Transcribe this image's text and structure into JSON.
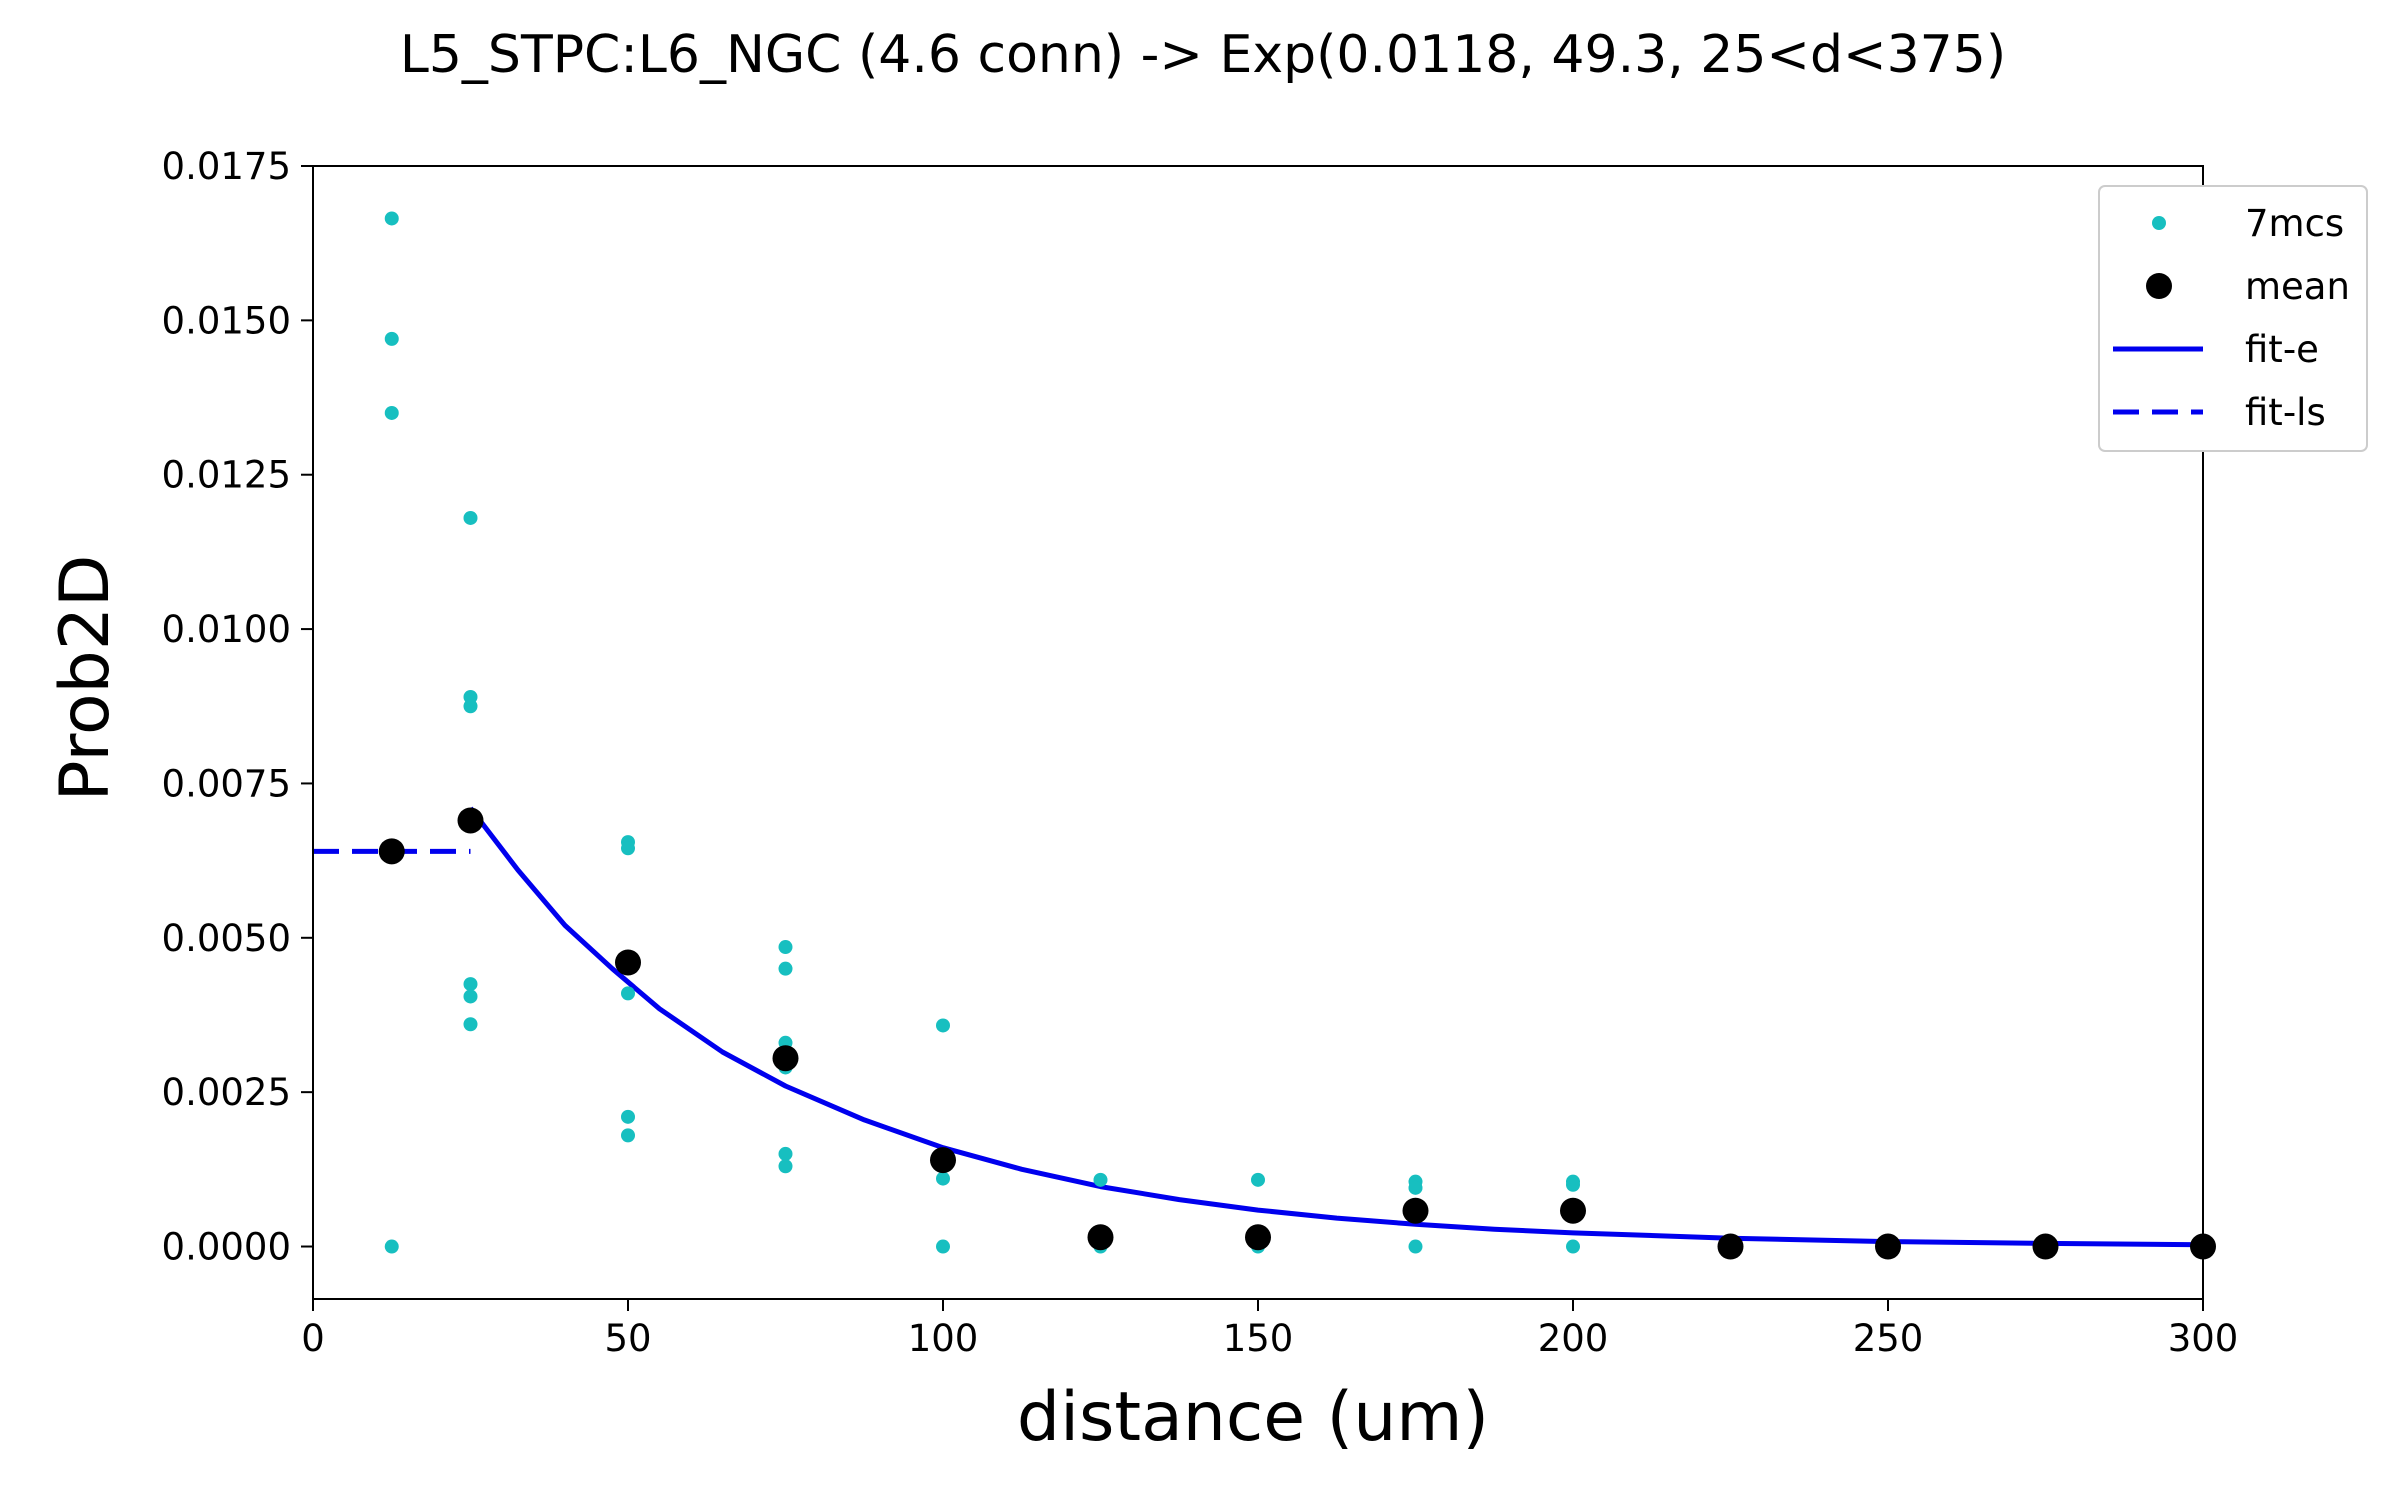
{
  "chart_data": {
    "type": "scatter",
    "title": "L5_STPC:L6_NGC (4.6 conn) -> Exp(0.0118, 49.3, 25<d<375)",
    "xlabel": "distance (um)",
    "ylabel": "Prob2D",
    "xlim": [
      0,
      300
    ],
    "ylim": [
      -0.00085,
      0.0175
    ],
    "x_ticks": [
      0,
      50,
      100,
      150,
      200,
      250,
      300
    ],
    "x_tick_labels": [
      "0",
      "50",
      "100",
      "150",
      "200",
      "250",
      "300"
    ],
    "y_ticks": [
      0.0,
      0.0025,
      0.005,
      0.0075,
      0.01,
      0.0125,
      0.015,
      0.0175
    ],
    "y_tick_labels": [
      "0.0000",
      "0.0025",
      "0.0050",
      "0.0075",
      "0.0100",
      "0.0125",
      "0.0150",
      "0.0175"
    ],
    "grid": false,
    "legend_position": "top-right",
    "colors": {
      "samples": "#17bfc0",
      "mean": "#000000",
      "fit": "#0000ee"
    },
    "series": [
      {
        "name": "7mcs",
        "kind": "points",
        "points": [
          [
            12.5,
            0.01665
          ],
          [
            12.5,
            0.0147
          ],
          [
            12.5,
            0.0135
          ],
          [
            12.5,
            0.0
          ],
          [
            25,
            0.0118
          ],
          [
            25,
            0.0089
          ],
          [
            25,
            0.00875
          ],
          [
            25,
            0.0069
          ],
          [
            25,
            0.00425
          ],
          [
            25,
            0.00405
          ],
          [
            25,
            0.0036
          ],
          [
            50,
            0.00655
          ],
          [
            50,
            0.00645
          ],
          [
            50,
            0.0041
          ],
          [
            50,
            0.0021
          ],
          [
            50,
            0.0018
          ],
          [
            75,
            0.00485
          ],
          [
            75,
            0.0045
          ],
          [
            75,
            0.0033
          ],
          [
            75,
            0.0029
          ],
          [
            75,
            0.0015
          ],
          [
            75,
            0.0013
          ],
          [
            100,
            0.00358
          ],
          [
            100,
            0.0011
          ],
          [
            100,
            0.0
          ],
          [
            125,
            0.00108
          ],
          [
            125,
            0.0
          ],
          [
            150,
            0.00108
          ],
          [
            150,
            0.0
          ],
          [
            175,
            0.00105
          ],
          [
            175,
            0.00095
          ],
          [
            175,
            0.0
          ],
          [
            200,
            0.00105
          ],
          [
            200,
            0.001
          ],
          [
            200,
            0.0
          ],
          [
            225,
            0.0
          ],
          [
            250,
            0.0
          ],
          [
            275,
            0.0
          ],
          [
            300,
            0.0
          ]
        ]
      },
      {
        "name": "mean",
        "kind": "points",
        "points": [
          [
            12.5,
            0.0064
          ],
          [
            25,
            0.0069
          ],
          [
            50,
            0.0046
          ],
          [
            75,
            0.00305
          ],
          [
            100,
            0.0014
          ],
          [
            125,
            0.00015
          ],
          [
            150,
            0.00015
          ],
          [
            175,
            0.00058
          ],
          [
            200,
            0.00058
          ],
          [
            225,
            0.0
          ],
          [
            250,
            0.0
          ],
          [
            275,
            0.0
          ],
          [
            300,
            0.0
          ]
        ]
      },
      {
        "name": "fit-e",
        "kind": "line",
        "style": "solid",
        "points": [
          [
            25,
            0.0071
          ],
          [
            32.5,
            0.0061
          ],
          [
            40,
            0.0052
          ],
          [
            47.5,
            0.0045
          ],
          [
            55,
            0.00385
          ],
          [
            65,
            0.00315
          ],
          [
            75,
            0.0026
          ],
          [
            87.5,
            0.00205
          ],
          [
            100,
            0.0016
          ],
          [
            112.5,
            0.00125
          ],
          [
            125,
            0.00097
          ],
          [
            137.5,
            0.00076
          ],
          [
            150,
            0.00059
          ],
          [
            162.5,
            0.00046
          ],
          [
            175,
            0.00036
          ],
          [
            187.5,
            0.00028
          ],
          [
            200,
            0.00022
          ],
          [
            225,
            0.000135
          ],
          [
            250,
            8e-05
          ],
          [
            275,
            5e-05
          ],
          [
            300,
            3e-05
          ]
        ]
      },
      {
        "name": "fit-ls",
        "kind": "line",
        "style": "dashed",
        "points": [
          [
            0,
            0.0064
          ],
          [
            25,
            0.0064
          ]
        ]
      }
    ]
  }
}
